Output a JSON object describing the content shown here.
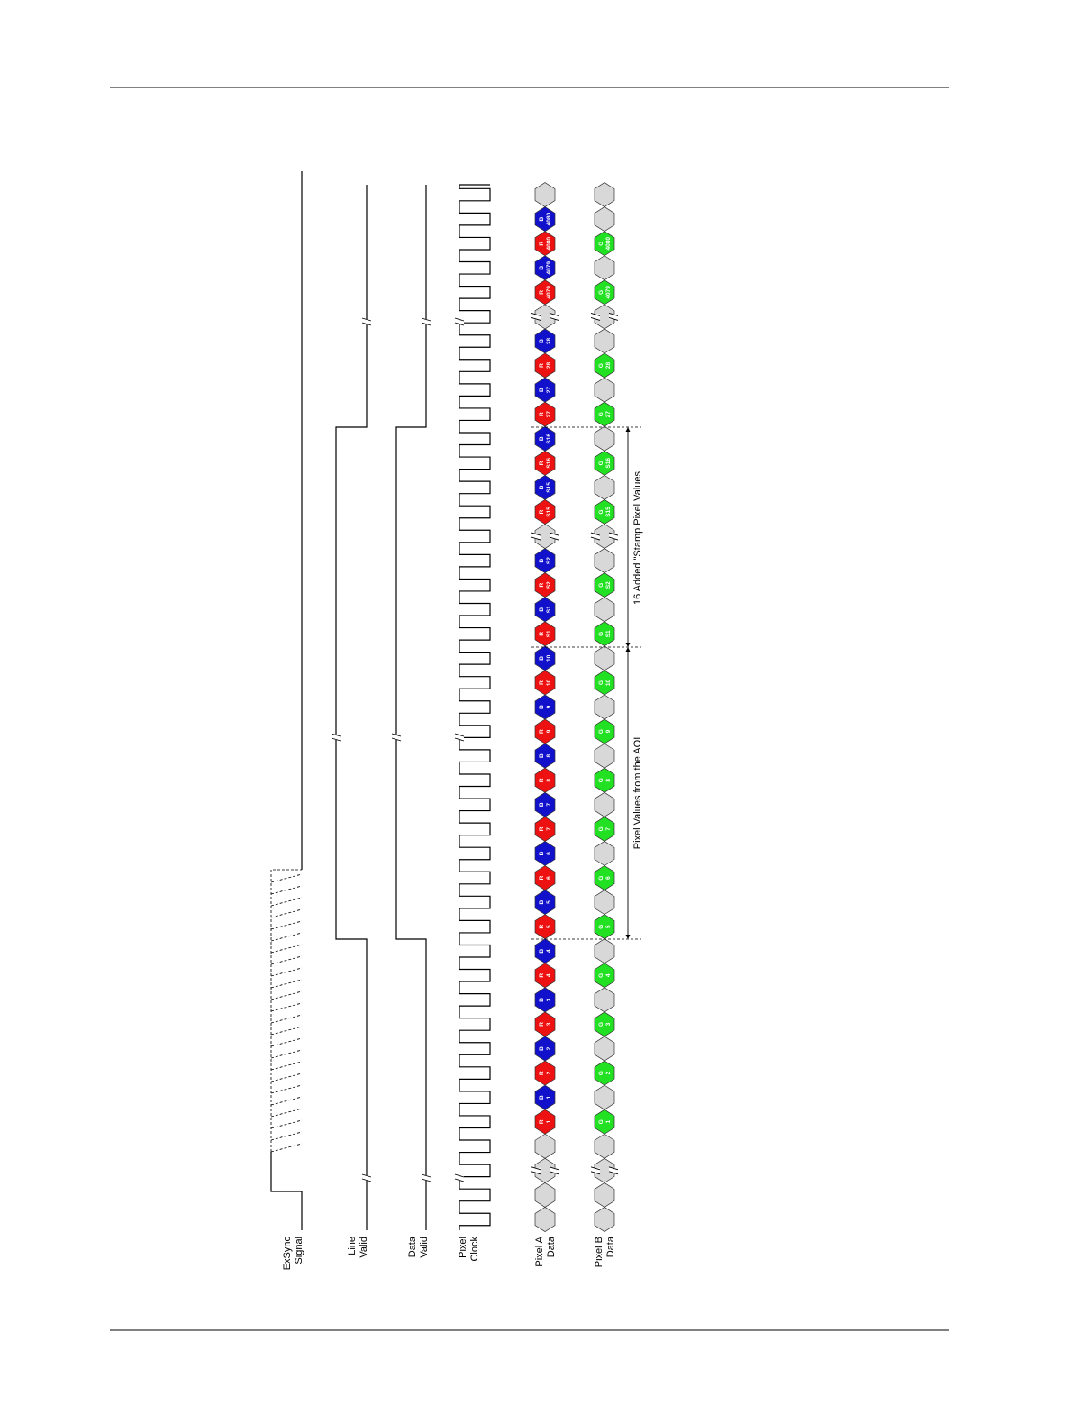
{
  "signal_labels": [
    [
      "ExSync",
      "Signal"
    ],
    [
      "Line",
      "Valid"
    ],
    [
      "Data",
      "Valid"
    ],
    [
      "Pixel",
      "Clock"
    ],
    [
      "Pixel A",
      "Data"
    ],
    [
      "Pixel B",
      "Data"
    ]
  ],
  "annotations": [
    "Pixel Values from the AOI",
    "16 Added \"Stamp Pixel Values"
  ],
  "colors": {
    "R": "#ee1111",
    "B": "#1111cc",
    "G": "#22e022"
  },
  "pixel_a": {
    "segments": [
      [
        null,
        null
      ],
      [
        null,
        null,
        [
          "R",
          "1"
        ],
        [
          "B",
          "1"
        ],
        [
          "R",
          "2"
        ],
        [
          "B",
          "2"
        ],
        [
          "R",
          "3"
        ],
        [
          "B",
          "3"
        ],
        [
          "R",
          "4"
        ],
        [
          "B",
          "4"
        ],
        [
          "R",
          "5"
        ],
        [
          "B",
          "5"
        ],
        [
          "R",
          "6"
        ],
        [
          "B",
          "6"
        ],
        [
          "R",
          "7"
        ],
        [
          "B",
          "7"
        ],
        [
          "R",
          "8"
        ],
        [
          "B",
          "8"
        ],
        [
          "R",
          "9"
        ],
        [
          "B",
          "9"
        ],
        [
          "R",
          "10"
        ],
        [
          "B",
          "10"
        ],
        [
          "R",
          "S1"
        ],
        [
          "B",
          "S1"
        ],
        [
          "R",
          "S2"
        ],
        [
          "B",
          "S2"
        ]
      ],
      [
        null,
        [
          "R",
          "S15"
        ],
        [
          "B",
          "S15"
        ],
        [
          "R",
          "S16"
        ],
        [
          "B",
          "S16"
        ],
        [
          "R",
          "27"
        ],
        [
          "B",
          "27"
        ],
        [
          "R",
          "28"
        ],
        [
          "B",
          "28"
        ]
      ],
      [
        null,
        [
          "R",
          "4079"
        ],
        [
          "B",
          "4079"
        ],
        [
          "R",
          "4080"
        ],
        [
          "B",
          "4080"
        ],
        null
      ]
    ]
  },
  "pixel_b": {
    "segments": [
      [
        null,
        null
      ],
      [
        null,
        null,
        [
          "G",
          "1"
        ],
        null,
        [
          "G",
          "2"
        ],
        null,
        [
          "G",
          "3"
        ],
        null,
        [
          "G",
          "4"
        ],
        null,
        [
          "G",
          "5"
        ],
        null,
        [
          "G",
          "6"
        ],
        null,
        [
          "G",
          "7"
        ],
        null,
        [
          "G",
          "8"
        ],
        null,
        [
          "G",
          "9"
        ],
        null,
        [
          "G",
          "10"
        ],
        null,
        [
          "G",
          "S1"
        ],
        null,
        [
          "G",
          "S2"
        ],
        null
      ],
      [
        null,
        [
          "G",
          "S15"
        ],
        null,
        [
          "G",
          "S16"
        ],
        null,
        [
          "G",
          "27"
        ],
        null,
        [
          "G",
          "28"
        ],
        null
      ],
      [
        null,
        [
          "G",
          "4079"
        ],
        null,
        [
          "G",
          "4080"
        ],
        null,
        null
      ]
    ]
  }
}
